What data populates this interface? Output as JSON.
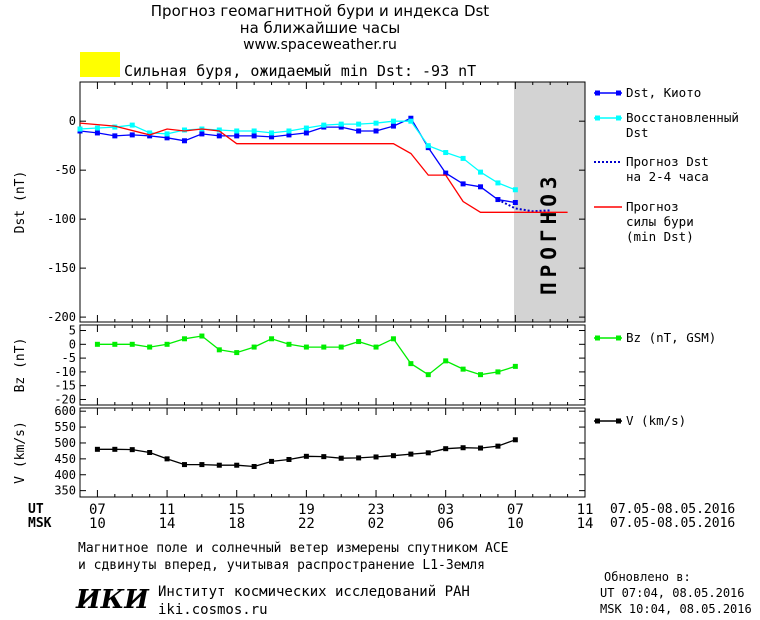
{
  "header": {
    "title_line1": "Прогноз геомагнитной бури и индекса Dst",
    "title_line2": "на ближайшие часы",
    "website": "www.spaceweather.ru",
    "alert_color": "#ffff00",
    "alert_text": "Сильная буря, ожидаемый min Dst: -93 nT"
  },
  "chart_data": [
    {
      "type": "line",
      "ylabel": "Dst (nT)",
      "ylim": [
        -205,
        40
      ],
      "yticks": [
        0,
        -50,
        -100,
        -150,
        -200
      ],
      "ytick_labels": [
        "0",
        "-50",
        "-100",
        "-150",
        "-200"
      ],
      "forecast_label": "ПРОГНОЗ",
      "x_unit": "hours since 07 UT",
      "series": [
        {
          "name": "Dst, Киото",
          "color": "#0000ff",
          "marker": "square",
          "style": "solid",
          "x": [
            -1,
            0,
            1,
            2,
            3,
            4,
            5,
            6,
            7,
            8,
            9,
            10,
            11,
            12,
            13,
            14,
            15,
            16,
            17,
            18,
            19,
            20,
            21,
            22,
            23,
            24
          ],
          "y": [
            -10,
            -12,
            -15,
            -14,
            -15,
            -17,
            -20,
            -13,
            -15,
            -15,
            -15,
            -16,
            -14,
            -12,
            -6,
            -6,
            -10,
            -10,
            -5,
            3,
            -27,
            -53,
            -64,
            -67,
            -80,
            -83
          ]
        },
        {
          "name": "Восстановленный Dst",
          "color": "#00ffff",
          "marker": "square",
          "style": "solid",
          "x": [
            -1,
            0,
            1,
            2,
            3,
            4,
            5,
            6,
            7,
            8,
            9,
            10,
            11,
            12,
            13,
            14,
            15,
            16,
            17,
            18,
            19,
            20,
            21,
            22,
            23,
            24
          ],
          "y": [
            -8,
            -7,
            -6,
            -4,
            -12,
            -13,
            -9,
            -8,
            -9,
            -10,
            -10,
            -12,
            -10,
            -7,
            -4,
            -3,
            -3,
            -2,
            0,
            0,
            -25,
            -32,
            -38,
            -52,
            -63,
            -70
          ]
        },
        {
          "name": "Прогноз Dst на 2-4 часа",
          "color": "#0000cc",
          "marker": "none",
          "style": "dotted",
          "x": [
            23,
            24,
            25,
            26
          ],
          "y": [
            -80,
            -89,
            -92,
            -91
          ]
        },
        {
          "name": "Прогноз силы бури (min Dst)",
          "color": "#ff0000",
          "marker": "none",
          "style": "solid",
          "x": [
            -1,
            1,
            3,
            4,
            5,
            6,
            7,
            8,
            9,
            10,
            11,
            12,
            13,
            14,
            15,
            16,
            17,
            18,
            19,
            20,
            21,
            22,
            23,
            24,
            25,
            26,
            27
          ],
          "y": [
            -2,
            -5,
            -14,
            -8,
            -10,
            -8,
            -10,
            -23,
            -23,
            -23,
            -23,
            -23,
            -23,
            -23,
            -23,
            -23,
            -23,
            -33,
            -55,
            -55,
            -82,
            -93,
            -93,
            -93,
            -93,
            -93,
            -93
          ]
        }
      ]
    },
    {
      "type": "line",
      "ylabel": "Bz (nT)",
      "ylim": [
        -22,
        7
      ],
      "yticks": [
        5,
        0,
        -5,
        -10,
        -15,
        -20
      ],
      "ytick_labels": [
        "5",
        "0",
        "-5",
        "-10",
        "-15",
        "-20"
      ],
      "series": [
        {
          "name": "Bz (nT, GSM)",
          "color": "#00ee00",
          "marker": "square",
          "style": "solid",
          "x": [
            0,
            1,
            2,
            3,
            4,
            5,
            6,
            7,
            8,
            9,
            10,
            11,
            12,
            13,
            14,
            15,
            16,
            17,
            18,
            19,
            20,
            21,
            22,
            23,
            24
          ],
          "y": [
            0,
            0,
            0,
            -1,
            0,
            2,
            3,
            -2,
            -3,
            -1,
            2,
            0,
            -1,
            -1,
            -1,
            1,
            -1,
            2,
            -7,
            -11,
            -6,
            -9,
            -11,
            -10,
            -8
          ]
        }
      ]
    },
    {
      "type": "line",
      "ylabel": "V (km/s)",
      "ylim": [
        330,
        610
      ],
      "yticks": [
        350,
        400,
        450,
        500,
        550,
        600
      ],
      "ytick_labels": [
        "350",
        "400",
        "450",
        "500",
        "550",
        "600"
      ],
      "series": [
        {
          "name": "V (km/s)",
          "color": "#000000",
          "marker": "square",
          "style": "solid",
          "x": [
            0,
            1,
            2,
            3,
            4,
            5,
            6,
            7,
            8,
            9,
            10,
            11,
            12,
            13,
            14,
            15,
            16,
            17,
            18,
            19,
            20,
            21,
            22,
            23,
            24
          ],
          "y": [
            480,
            480,
            479,
            470,
            450,
            432,
            432,
            430,
            430,
            426,
            442,
            448,
            458,
            457,
            452,
            453,
            456,
            460,
            465,
            469,
            482,
            485,
            484,
            490,
            510
          ]
        }
      ]
    }
  ],
  "time_axis": {
    "ut_label": "UT",
    "msk_label": "MSK",
    "ut_ticks": [
      "07",
      "11",
      "15",
      "19",
      "23",
      "03",
      "07",
      "11"
    ],
    "msk_ticks": [
      "10",
      "14",
      "18",
      "22",
      "02",
      "06",
      "10",
      "14"
    ],
    "ut_range": "07.05-08.05.2016",
    "msk_range": "07.05-08.05.2016"
  },
  "footer": {
    "note_line1": "Магнитное поле и солнечный ветер измерены спутником ACE",
    "note_line2": "и сдвинуты вперед, учитывая распространение L1-Земля",
    "logo_text": "ИКИ",
    "institute": "Институт космических исследований РАН",
    "institute_url": "iki.cosmos.ru",
    "updated_label": "Обновлено в:",
    "updated_ut": "UT  07:04, 08.05.2016",
    "updated_msk": "MSK 10:04, 08.05.2016"
  }
}
